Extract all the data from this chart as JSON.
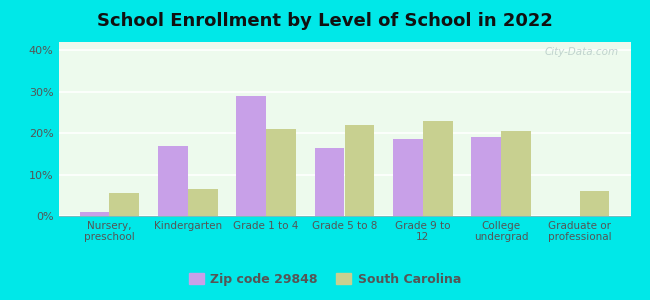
{
  "title": "School Enrollment by Level of School in 2022",
  "categories": [
    "Nursery,\npreschool",
    "Kindergarten",
    "Grade 1 to 4",
    "Grade 5 to 8",
    "Grade 9 to\n12",
    "College\nundergrad",
    "Graduate or\nprofessional"
  ],
  "zip_values": [
    1.0,
    17.0,
    29.0,
    16.5,
    18.5,
    19.0,
    0.0
  ],
  "sc_values": [
    5.5,
    6.5,
    21.0,
    22.0,
    23.0,
    20.5,
    6.0
  ],
  "zip_color": "#c8a0e8",
  "sc_color": "#c8d090",
  "background_color": "#00e8e8",
  "plot_bg_color": "#edfaed",
  "ylim": [
    0,
    42
  ],
  "yticks": [
    0,
    10,
    20,
    30,
    40
  ],
  "ytick_labels": [
    "0%",
    "10%",
    "20%",
    "30%",
    "40%"
  ],
  "legend_zip_label": "Zip code 29848",
  "legend_sc_label": "South Carolina",
  "title_fontsize": 13,
  "tick_fontsize": 8,
  "legend_fontsize": 9,
  "watermark": "City-Data.com"
}
